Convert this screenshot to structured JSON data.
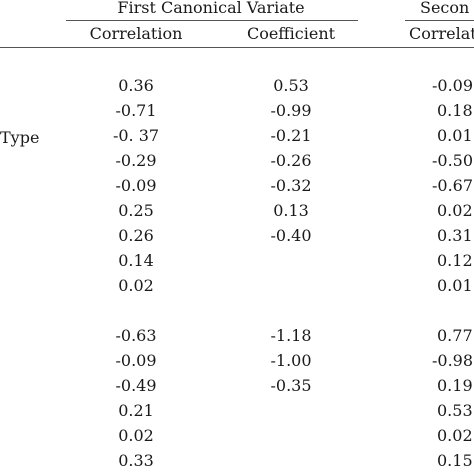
{
  "header": {
    "group1_title": "First Canonical Variate",
    "group2_title_partial": "Secon",
    "col_correlation_1": "Correlation",
    "col_coefficient_1": "Coefficient",
    "col_correlation_2_partial": "Correlat"
  },
  "row_label_type": "Type",
  "rows": [
    {
      "c1": "0.36",
      "k1": "0.53",
      "c2": "-0.09"
    },
    {
      "c1": "-0.71",
      "k1": "-0.99",
      "c2": "0.18"
    },
    {
      "c1": "-0. 37",
      "k1": "-0.21",
      "c2": "0.01"
    },
    {
      "c1": "-0.29",
      "k1": "-0.26",
      "c2": "-0.50"
    },
    {
      "c1": "-0.09",
      "k1": "-0.32",
      "c2": "-0.67"
    },
    {
      "c1": "0.25",
      "k1": "0.13",
      "c2": "0.02"
    },
    {
      "c1": "0.26",
      "k1": "-0.40",
      "c2": "0.31"
    },
    {
      "c1": "0.14",
      "k1": "",
      "c2": "0.12"
    },
    {
      "c1": "0.02",
      "k1": "",
      "c2": "0.01"
    },
    {
      "c1": "-0.63",
      "k1": "-1.18",
      "c2": "0.77"
    },
    {
      "c1": "-0.09",
      "k1": "-1.00",
      "c2": "-0.98"
    },
    {
      "c1": "-0.49",
      "k1": "-0.35",
      "c2": "0.19"
    },
    {
      "c1": "0.21",
      "k1": "",
      "c2": "0.53"
    },
    {
      "c1": "0.02",
      "k1": "",
      "c2": "0.02"
    },
    {
      "c1": "0.33",
      "k1": "",
      "c2": "0.15"
    }
  ]
}
